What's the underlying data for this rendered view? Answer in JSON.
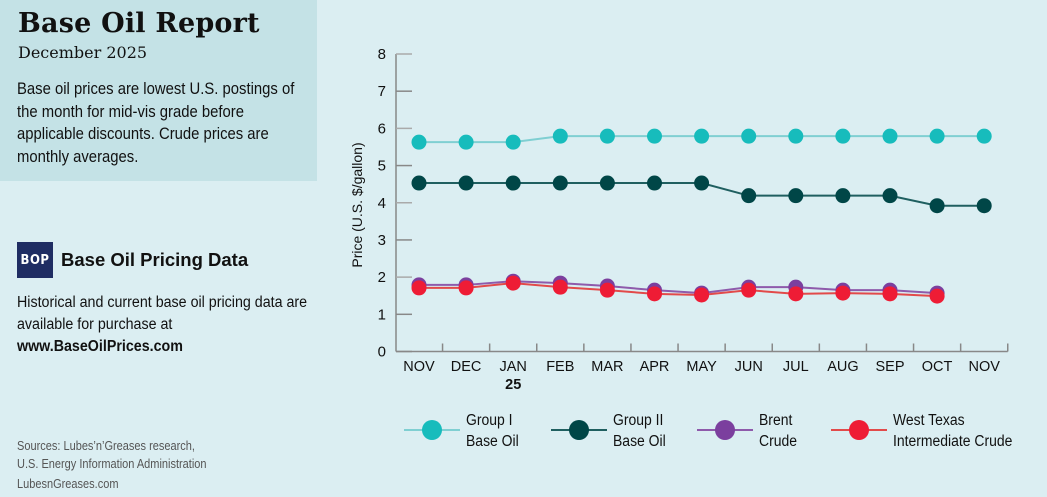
{
  "header": {
    "title": "Base Oil Report",
    "subtitle": "December 2025",
    "intro": "Base oil prices are lowest U.S. postings of the month for mid-vis grade before applicable discounts. Crude prices are monthly averages."
  },
  "promo": {
    "badge": "BOP",
    "title": "Base Oil Pricing Data",
    "text": "Historical and current base oil pricing data are available for purchase at",
    "url": "www.BaseOilPrices.com",
    "badge_color": "#1f2d63"
  },
  "footer": {
    "sources_line1": "Sources: Lubes’n’Greases research,",
    "sources_line2": "U.S. Energy Information Administration",
    "site": "LubesnGreases.com"
  },
  "chart_data": {
    "type": "line",
    "title": "Base Oil Report",
    "xlabel": "",
    "ylabel": "Price (U.S. $/gallon)",
    "ylim": [
      0,
      8
    ],
    "yticks": [
      0,
      1,
      2,
      3,
      4,
      5,
      6,
      7,
      8
    ],
    "categories": [
      "NOV",
      "DEC",
      "JAN",
      "FEB",
      "MAR",
      "APR",
      "MAY",
      "JUN",
      "JUL",
      "AUG",
      "SEP",
      "OCT",
      "NOV"
    ],
    "year_marker": {
      "category_index": 2,
      "label": "25"
    },
    "grid": false,
    "legend_position": "bottom",
    "series": [
      {
        "name": "Group I Base Oil",
        "legend_line1": "Group I",
        "legend_line2": "Base Oil",
        "color": "#17bcbc",
        "line_color": "#7fcfd2",
        "values": [
          5.63,
          5.63,
          5.63,
          5.79,
          5.79,
          5.79,
          5.79,
          5.79,
          5.79,
          5.79,
          5.79,
          5.79,
          5.79
        ]
      },
      {
        "name": "Group II Base Oil",
        "legend_line1": "Group II",
        "legend_line2": "Base Oil",
        "color": "#004647",
        "line_color": "#1f5f60",
        "values": [
          4.53,
          4.53,
          4.53,
          4.53,
          4.53,
          4.53,
          4.53,
          4.19,
          4.19,
          4.19,
          4.19,
          3.92,
          3.92
        ]
      },
      {
        "name": "Brent Crude",
        "legend_line1": "Brent",
        "legend_line2": "Crude",
        "color": "#7b3f9e",
        "line_color": "#8e5aab",
        "values": [
          1.79,
          1.79,
          1.89,
          1.84,
          1.76,
          1.65,
          1.57,
          1.73,
          1.73,
          1.65,
          1.65,
          1.57,
          null
        ]
      },
      {
        "name": "West Texas Intermediate Crude",
        "legend_line1": "West Texas",
        "legend_line2": "Intermediate Crude",
        "color": "#ee1c35",
        "line_color": "#e24a4a",
        "values": [
          1.71,
          1.71,
          1.84,
          1.73,
          1.65,
          1.55,
          1.52,
          1.65,
          1.55,
          1.57,
          1.55,
          1.49,
          null
        ]
      }
    ]
  }
}
